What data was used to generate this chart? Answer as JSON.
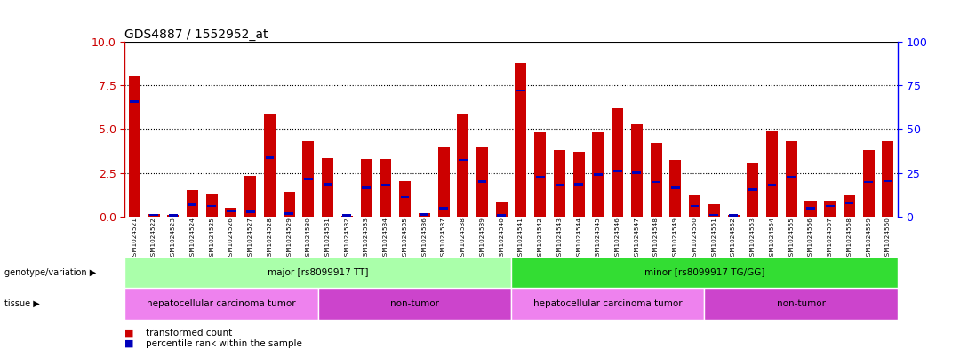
{
  "title": "GDS4887 / 1552952_at",
  "samples": [
    "GSM1024521",
    "GSM1024522",
    "GSM1024523",
    "GSM1024524",
    "GSM1024525",
    "GSM1024526",
    "GSM1024527",
    "GSM1024528",
    "GSM1024529",
    "GSM1024530",
    "GSM1024531",
    "GSM1024532",
    "GSM1024533",
    "GSM1024534",
    "GSM1024535",
    "GSM1024536",
    "GSM1024537",
    "GSM1024538",
    "GSM1024539",
    "GSM1024540",
    "GSM1024541",
    "GSM1024542",
    "GSM1024543",
    "GSM1024544",
    "GSM1024545",
    "GSM1024546",
    "GSM1024547",
    "GSM1024548",
    "GSM1024549",
    "GSM1024550",
    "GSM1024551",
    "GSM1024552",
    "GSM1024553",
    "GSM1024554",
    "GSM1024555",
    "GSM1024556",
    "GSM1024557",
    "GSM1024558",
    "GSM1024559",
    "GSM1024560"
  ],
  "red_values": [
    8.0,
    0.15,
    0.1,
    1.5,
    1.3,
    0.5,
    2.3,
    5.9,
    1.4,
    4.3,
    3.35,
    0.05,
    3.3,
    3.3,
    2.0,
    0.2,
    4.0,
    5.9,
    4.0,
    0.85,
    8.8,
    4.8,
    3.8,
    3.7,
    4.8,
    6.2,
    5.3,
    4.2,
    3.25,
    1.2,
    0.7,
    0.1,
    3.05,
    4.9,
    4.3,
    0.9,
    0.9,
    1.2,
    3.8,
    4.3
  ],
  "blue_fractions": [
    0.82,
    0.5,
    0.5,
    0.45,
    0.45,
    0.6,
    0.12,
    0.57,
    0.12,
    0.5,
    0.55,
    0.5,
    0.5,
    0.55,
    0.55,
    0.55,
    0.12,
    0.55,
    0.5,
    0.05,
    0.82,
    0.47,
    0.47,
    0.5,
    0.5,
    0.42,
    0.47,
    0.47,
    0.5,
    0.5,
    0.12,
    0.5,
    0.5,
    0.37,
    0.52,
    0.52,
    0.65,
    0.62,
    0.52,
    0.47
  ],
  "ylim_left": [
    0,
    10
  ],
  "ylim_right": [
    0,
    100
  ],
  "yticks_left": [
    0,
    2.5,
    5.0,
    7.5,
    10
  ],
  "yticks_right": [
    0,
    25,
    50,
    75,
    100
  ],
  "bar_color_red": "#cc0000",
  "bar_color_blue": "#0000bb",
  "bg_color": "#ffffff",
  "xticklabel_bg": "#cccccc",
  "genotype_groups": [
    {
      "label": "major [rs8099917 TT]",
      "start": 0,
      "end": 19,
      "color": "#aaffaa"
    },
    {
      "label": "minor [rs8099917 TG/GG]",
      "start": 20,
      "end": 39,
      "color": "#33dd33"
    }
  ],
  "tissue_groups": [
    {
      "label": "hepatocellular carcinoma tumor",
      "start": 0,
      "end": 9,
      "color": "#ee82ee"
    },
    {
      "label": "non-tumor",
      "start": 10,
      "end": 19,
      "color": "#cc44cc"
    },
    {
      "label": "hepatocellular carcinoma tumor",
      "start": 20,
      "end": 29,
      "color": "#ee82ee"
    },
    {
      "label": "non-tumor",
      "start": 30,
      "end": 39,
      "color": "#cc44cc"
    }
  ],
  "geno_label": "genotype/variation",
  "tissue_label": "tissue",
  "legend_items": [
    {
      "color": "#cc0000",
      "text": "transformed count"
    },
    {
      "color": "#0000bb",
      "text": "percentile rank within the sample"
    }
  ]
}
